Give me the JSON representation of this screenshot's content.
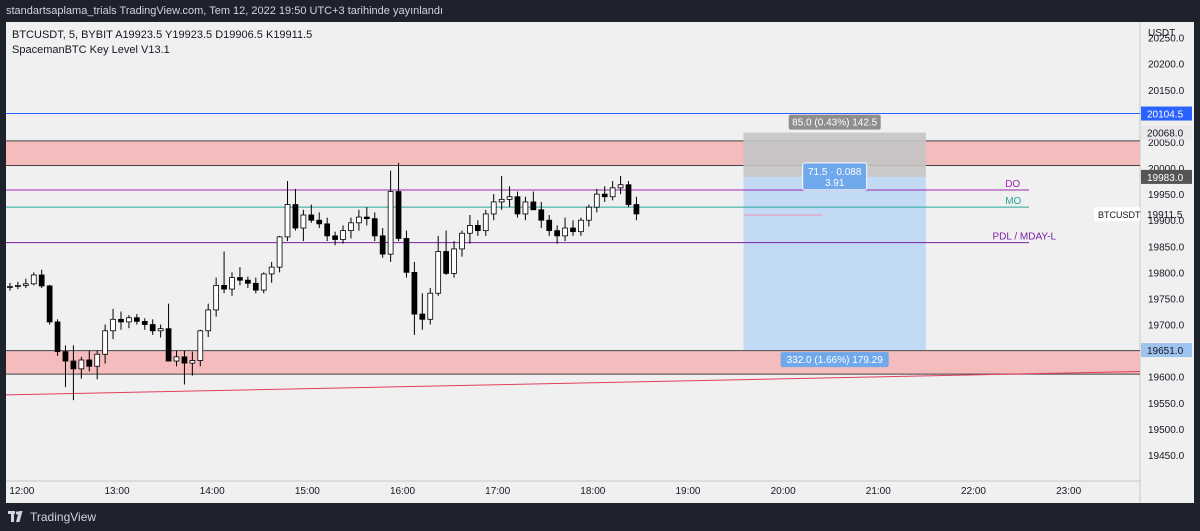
{
  "header": {
    "publish_line": "standartsaplama_trials TradingView.com, Tem 12, 2022 19:50 UTC+3 tarihinde yayınlandı"
  },
  "footer": {
    "brand": "TradingView"
  },
  "chart_data": {
    "type": "candlestick",
    "symbol_line": "BTCUSDT, 5, BYBIT  A19923.5  Y19923.5  D19906.5  K19911.5",
    "indicator_line": "SpacemanBTC Key Level V13.1",
    "currency": "USDT",
    "price_axis": {
      "min": 19400,
      "max": 20280,
      "ticks": [
        19450,
        19500,
        19550,
        19600,
        19650,
        19700,
        19750,
        19800,
        19850,
        19900,
        19950,
        20000,
        20050,
        20100,
        20150,
        20200,
        20250
      ],
      "tick_labels": [
        "19450.0",
        "19500.0",
        "19550.0",
        "19600.0",
        "19650.0",
        "19700.0",
        "19750.0",
        "19800.0",
        "19850.0",
        "19900.0",
        "19950.0",
        "20000.0",
        "20050.0",
        "20100.0",
        "20150.0",
        "20200.0",
        "20250.0"
      ]
    },
    "time_axis": {
      "start": "11:50",
      "end": "23:45",
      "labels": [
        "12:00",
        "13:00",
        "14:00",
        "15:00",
        "16:00",
        "17:00",
        "18:00",
        "19:00",
        "20:00",
        "21:00",
        "22:00",
        "23:00"
      ]
    },
    "colors": {
      "up_body": "#ffffff",
      "down_body": "#000000",
      "wick": "#000000",
      "zone_fill": "#f4bcbc",
      "zone_border": "#444444",
      "blue_line": "#2962ff",
      "dayopen": "#9c27b0",
      "monthopen": "#26a69a",
      "pdl": "#7b1fa2",
      "trend": "#e0405e",
      "target_fill": "#bbd6f5",
      "stop_fill": "#c4c4c4"
    },
    "zones": [
      {
        "from": 20052,
        "to": 20005
      },
      {
        "from": 19650,
        "to": 19605
      }
    ],
    "levels": [
      {
        "name": "blue",
        "price": 20104.5,
        "label": "20104.5",
        "label_color": "#2962ff",
        "from": "11:50",
        "to": "23:45"
      },
      {
        "name": "DO",
        "price": 19958,
        "label": "DO",
        "label_color": "#9c27b0",
        "from": "11:50",
        "to": "22:35",
        "text_at": "22:20"
      },
      {
        "name": "MO",
        "price": 19925,
        "label": "MO",
        "label_color": "#26a69a",
        "from": "11:50",
        "to": "22:35",
        "text_at": "22:20"
      },
      {
        "name": "PDL",
        "price": 19857,
        "label": "PDL / MDAY-L",
        "label_color": "#7b1fa2",
        "from": "11:50",
        "to": "22:35",
        "text_at": "22:12"
      }
    ],
    "trendline": {
      "from": [
        "11:50",
        19565
      ],
      "to": [
        "23:45",
        19610
      ]
    },
    "current_price": {
      "value": 19911.5,
      "label": "19911.5",
      "symbol": "BTCUSDT"
    },
    "position": {
      "from": "19:35",
      "to": "21:30",
      "entry": 19983,
      "target": 19651,
      "stop": 20068,
      "stop_label": "85.0 (0.43%) 142.5",
      "target_label": "332.0 (1.66%) 179.29",
      "ratio_label_1": "71.5 · 0.088",
      "ratio_label_2": "3.91",
      "entry_tag": "19983.0",
      "stop_tag": "20068.0",
      "target_tag": "19651.0",
      "entry_tag_color": "#555555",
      "stop_tag_color": "#e9e9e9",
      "target_tag_color": "#9fc3ef"
    },
    "pink_line": {
      "price": 19910,
      "from": "19:35",
      "to": "20:25"
    },
    "candles_start": "11:50",
    "candle_interval_min": 5,
    "candles": [
      [
        19772,
        19780,
        19765,
        19773
      ],
      [
        19773,
        19782,
        19768,
        19775
      ],
      [
        19775,
        19788,
        19770,
        19778
      ],
      [
        19778,
        19800,
        19775,
        19795
      ],
      [
        19795,
        19805,
        19770,
        19774
      ],
      [
        19774,
        19776,
        19700,
        19705
      ],
      [
        19705,
        19710,
        19640,
        19648
      ],
      [
        19648,
        19660,
        19580,
        19630
      ],
      [
        19630,
        19660,
        19555,
        19615
      ],
      [
        19615,
        19638,
        19596,
        19632
      ],
      [
        19632,
        19650,
        19610,
        19620
      ],
      [
        19620,
        19650,
        19595,
        19643
      ],
      [
        19643,
        19700,
        19625,
        19688
      ],
      [
        19688,
        19730,
        19672,
        19710
      ],
      [
        19710,
        19725,
        19690,
        19705
      ],
      [
        19705,
        19718,
        19693,
        19713
      ],
      [
        19713,
        19720,
        19700,
        19706
      ],
      [
        19706,
        19712,
        19690,
        19700
      ],
      [
        19700,
        19710,
        19680,
        19688
      ],
      [
        19688,
        19700,
        19675,
        19692
      ],
      [
        19692,
        19740,
        19630,
        19630
      ],
      [
        19630,
        19650,
        19620,
        19638
      ],
      [
        19638,
        19650,
        19585,
        19626
      ],
      [
        19626,
        19648,
        19602,
        19631
      ],
      [
        19631,
        19690,
        19620,
        19688
      ],
      [
        19688,
        19740,
        19676,
        19728
      ],
      [
        19728,
        19790,
        19715,
        19775
      ],
      [
        19775,
        19840,
        19760,
        19768
      ],
      [
        19768,
        19800,
        19755,
        19790
      ],
      [
        19790,
        19810,
        19775,
        19785
      ],
      [
        19785,
        19792,
        19770,
        19779
      ],
      [
        19779,
        19790,
        19760,
        19766
      ],
      [
        19766,
        19800,
        19760,
        19797
      ],
      [
        19797,
        19820,
        19780,
        19810
      ],
      [
        19810,
        19870,
        19800,
        19868
      ],
      [
        19868,
        19975,
        19860,
        19930
      ],
      [
        19930,
        19960,
        19880,
        19885
      ],
      [
        19885,
        19920,
        19860,
        19910
      ],
      [
        19910,
        19930,
        19895,
        19900
      ],
      [
        19900,
        19915,
        19885,
        19893
      ],
      [
        19893,
        19905,
        19860,
        19870
      ],
      [
        19870,
        19878,
        19852,
        19863
      ],
      [
        19863,
        19890,
        19855,
        19880
      ],
      [
        19880,
        19905,
        19865,
        19895
      ],
      [
        19895,
        19920,
        19880,
        19906
      ],
      [
        19906,
        19925,
        19890,
        19903
      ],
      [
        19903,
        19915,
        19860,
        19870
      ],
      [
        19870,
        19885,
        19828,
        19835
      ],
      [
        19835,
        19995,
        19820,
        19955
      ],
      [
        19955,
        20010,
        19860,
        19865
      ],
      [
        19865,
        19880,
        19790,
        19800
      ],
      [
        19800,
        19820,
        19680,
        19720
      ],
      [
        19720,
        19760,
        19690,
        19710
      ],
      [
        19710,
        19770,
        19700,
        19760
      ],
      [
        19760,
        19870,
        19755,
        19840
      ],
      [
        19840,
        19880,
        19795,
        19798
      ],
      [
        19798,
        19860,
        19790,
        19845
      ],
      [
        19845,
        19880,
        19830,
        19875
      ],
      [
        19875,
        19910,
        19855,
        19890
      ],
      [
        19890,
        19900,
        19870,
        19880
      ],
      [
        19880,
        19920,
        19870,
        19912
      ],
      [
        19912,
        19950,
        19900,
        19935
      ],
      [
        19935,
        19985,
        19920,
        19940
      ],
      [
        19940,
        19965,
        19925,
        19945
      ],
      [
        19945,
        19955,
        19905,
        19912
      ],
      [
        19912,
        19945,
        19900,
        19935
      ],
      [
        19935,
        19955,
        19920,
        19920
      ],
      [
        19920,
        19935,
        19885,
        19900
      ],
      [
        19900,
        19910,
        19870,
        19880
      ],
      [
        19880,
        19890,
        19855,
        19870
      ],
      [
        19870,
        19905,
        19860,
        19885
      ],
      [
        19885,
        19900,
        19870,
        19878
      ],
      [
        19878,
        19905,
        19870,
        19900
      ],
      [
        19900,
        19930,
        19888,
        19925
      ],
      [
        19925,
        19960,
        19915,
        19950
      ],
      [
        19950,
        19965,
        19935,
        19945
      ],
      [
        19945,
        19975,
        19938,
        19962
      ],
      [
        19962,
        19985,
        19950,
        19968
      ],
      [
        19968,
        19975,
        19925,
        19930
      ],
      [
        19930,
        19945,
        19900,
        19912
      ]
    ]
  }
}
